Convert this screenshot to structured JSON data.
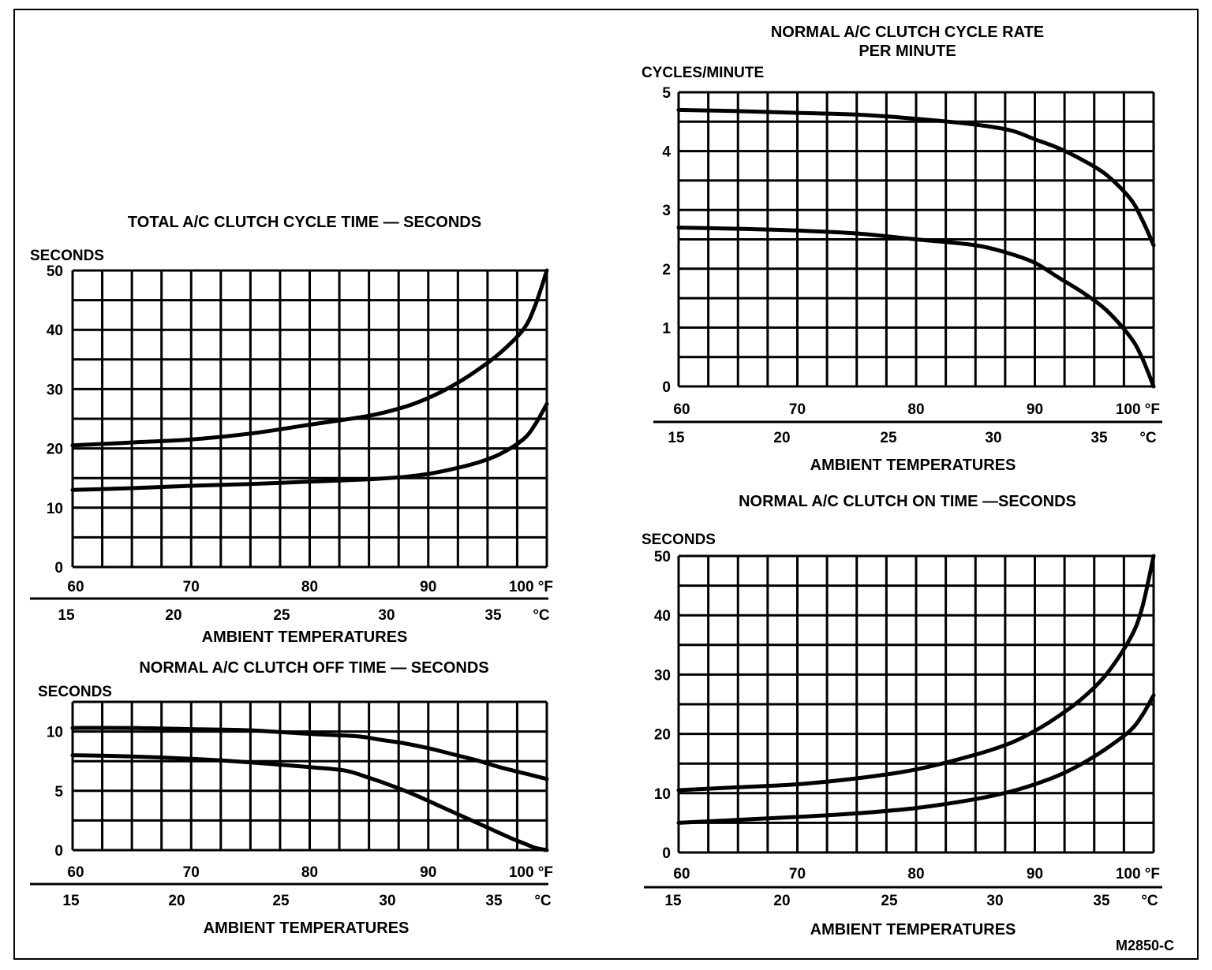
{
  "figure_id": "M2850-C",
  "chart_data": [
    {
      "id": "cycle-time",
      "type": "line",
      "title": "TOTAL A/C CLUTCH CYCLE TIME — SECONDS",
      "ylabel": "SECONDS",
      "xlabel": "AMBIENT TEMPERATURES",
      "xlim": [
        60,
        100
      ],
      "ylim": [
        0,
        50
      ],
      "x_ticks": [
        "60",
        "70",
        "80",
        "90",
        "100 °F"
      ],
      "y_ticks": [
        "0",
        "10",
        "20",
        "30",
        "40",
        "50"
      ],
      "c_ticks": [
        "15",
        "20",
        "25",
        "30",
        "35",
        "°C"
      ],
      "c_values": [
        15,
        20,
        25,
        30,
        35
      ],
      "series": [
        {
          "x": [
            60,
            65,
            70,
            75,
            80,
            85,
            88,
            90,
            92,
            94,
            96,
            98,
            99,
            100
          ],
          "values": [
            20.5,
            21,
            21.5,
            22.5,
            24,
            25.5,
            27,
            28.5,
            30.5,
            33,
            36,
            40,
            44,
            50
          ]
        },
        {
          "x": [
            60,
            65,
            70,
            75,
            80,
            85,
            88,
            90,
            92,
            94,
            96,
            98,
            99,
            100
          ],
          "values": [
            13,
            13.3,
            13.7,
            14,
            14.4,
            14.8,
            15.2,
            15.7,
            16.5,
            17.5,
            19,
            21.5,
            24,
            27.5
          ]
        }
      ]
    },
    {
      "id": "off-time",
      "type": "line",
      "title": "NORMAL A/C CLUTCH OFF TIME — SECONDS",
      "ylabel": "SECONDS",
      "xlabel": "AMBIENT TEMPERATURES",
      "xlim": [
        60,
        100
      ],
      "ylim": [
        0,
        12.5
      ],
      "x_ticks": [
        "60",
        "70",
        "80",
        "90",
        "100 °F"
      ],
      "y_ticks": [
        "0",
        "5",
        "10"
      ],
      "c_ticks": [
        "15",
        "20",
        "25",
        "30",
        "35",
        "°C"
      ],
      "c_values": [
        15,
        20,
        25,
        30,
        35
      ],
      "series": [
        {
          "x": [
            60,
            65,
            70,
            75,
            80,
            84,
            86,
            88,
            90,
            92,
            94,
            96,
            98,
            100
          ],
          "values": [
            10.3,
            10.3,
            10.2,
            10.1,
            9.8,
            9.6,
            9.3,
            9,
            8.6,
            8.1,
            7.6,
            7,
            6.5,
            6
          ]
        },
        {
          "x": [
            60,
            65,
            70,
            75,
            80,
            83,
            85,
            87,
            89,
            91,
            93,
            95,
            97,
            98,
            99,
            100
          ],
          "values": [
            8,
            7.9,
            7.7,
            7.4,
            7,
            6.7,
            6.1,
            5.4,
            4.6,
            3.7,
            2.8,
            1.9,
            1,
            0.6,
            0.2,
            0
          ]
        }
      ]
    },
    {
      "id": "cycle-rate",
      "type": "line",
      "title": "NORMAL A/C CLUTCH CYCLE RATE PER MINUTE",
      "title_lines": [
        "NORMAL A/C CLUTCH CYCLE RATE",
        "PER MINUTE"
      ],
      "ylabel": "CYCLES/MINUTE",
      "xlabel": "AMBIENT TEMPERATURES",
      "xlim": [
        60,
        100
      ],
      "ylim": [
        0,
        5
      ],
      "x_ticks": [
        "60",
        "70",
        "80",
        "90",
        "100 °F"
      ],
      "y_ticks": [
        "0",
        "1",
        "2",
        "3",
        "4",
        "5"
      ],
      "c_ticks": [
        "15",
        "20",
        "25",
        "30",
        "35",
        "°C"
      ],
      "c_values": [
        15,
        20,
        25,
        30,
        35
      ],
      "series": [
        {
          "x": [
            60,
            65,
            70,
            75,
            80,
            85,
            88,
            90,
            92,
            94,
            96,
            98,
            99,
            100
          ],
          "values": [
            4.7,
            4.68,
            4.65,
            4.62,
            4.55,
            4.45,
            4.35,
            4.2,
            4.05,
            3.85,
            3.6,
            3.2,
            2.85,
            2.4
          ]
        },
        {
          "x": [
            60,
            65,
            70,
            75,
            80,
            85,
            88,
            90,
            92,
            94,
            96,
            98,
            99,
            100
          ],
          "values": [
            2.7,
            2.68,
            2.65,
            2.6,
            2.5,
            2.4,
            2.25,
            2.1,
            1.85,
            1.6,
            1.3,
            0.85,
            0.5,
            0
          ]
        }
      ]
    },
    {
      "id": "on-time",
      "type": "line",
      "title": "NORMAL A/C CLUTCH ON TIME —SECONDS",
      "ylabel": "SECONDS",
      "xlabel": "AMBIENT TEMPERATURES",
      "xlim": [
        60,
        100
      ],
      "ylim": [
        0,
        50
      ],
      "x_ticks": [
        "60",
        "70",
        "80",
        "90",
        "100 °F"
      ],
      "y_ticks": [
        "0",
        "10",
        "20",
        "30",
        "40",
        "50"
      ],
      "c_ticks": [
        "15",
        "20",
        "25",
        "30",
        "35",
        "°C"
      ],
      "c_values": [
        15,
        20,
        25,
        30,
        35
      ],
      "series": [
        {
          "x": [
            60,
            65,
            70,
            75,
            80,
            85,
            88,
            90,
            92,
            94,
            96,
            98,
            99,
            100
          ],
          "values": [
            10.5,
            11,
            11.5,
            12.5,
            14,
            16.5,
            18.5,
            20.5,
            23,
            26,
            30,
            36,
            41,
            50
          ]
        },
        {
          "x": [
            60,
            65,
            70,
            75,
            80,
            85,
            88,
            90,
            92,
            94,
            96,
            98,
            99,
            100
          ],
          "values": [
            5,
            5.5,
            6,
            6.6,
            7.5,
            9,
            10.3,
            11.5,
            13,
            15,
            17.5,
            20.5,
            23,
            26.5
          ]
        }
      ]
    }
  ]
}
